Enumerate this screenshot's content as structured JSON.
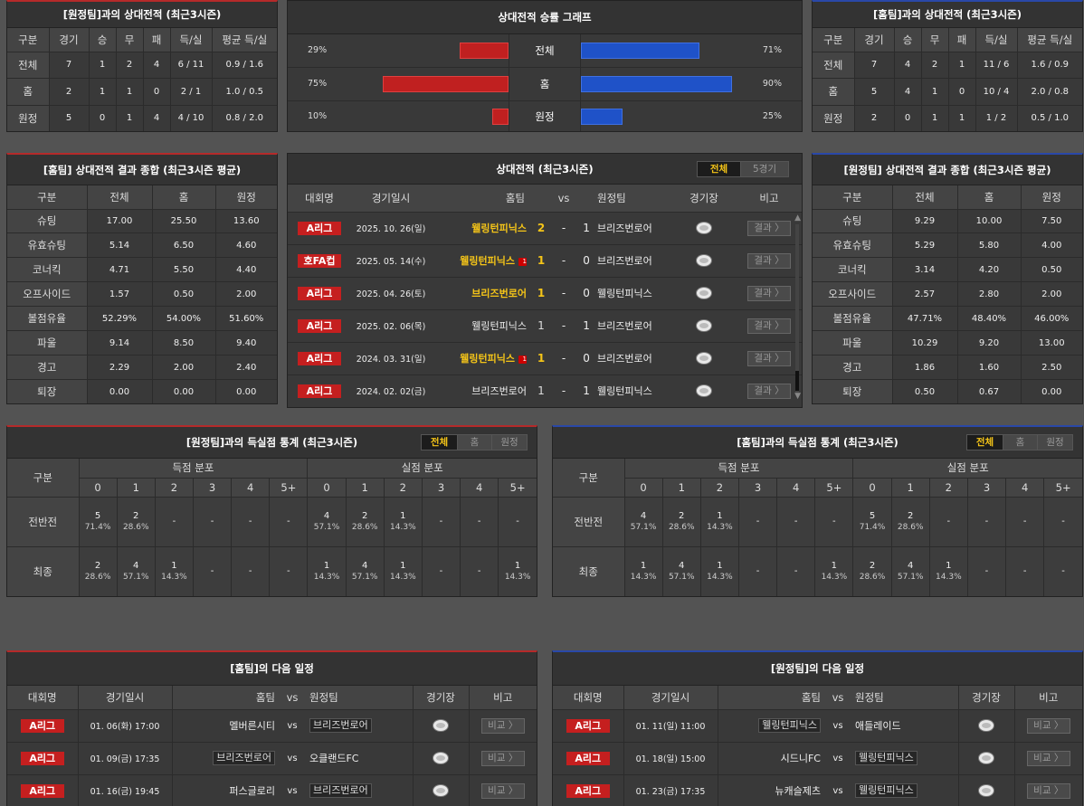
{
  "away_h2h": {
    "title": "[원정팀]과의 상대전적 (최근3시즌)",
    "headers": [
      "구분",
      "경기",
      "승",
      "무",
      "패",
      "득/실",
      "평균 득/실"
    ],
    "rows": [
      [
        "전체",
        "7",
        "1",
        "2",
        "4",
        "6 / 11",
        "0.9 / 1.6"
      ],
      [
        "홈",
        "2",
        "1",
        "1",
        "0",
        "2 / 1",
        "1.0 / 0.5"
      ],
      [
        "원정",
        "5",
        "0",
        "1",
        "4",
        "4 / 10",
        "0.8 / 2.0"
      ]
    ]
  },
  "graph": {
    "title": "상대전적 승률 그래프",
    "rows": [
      {
        "label": "전체",
        "left_pct": "29%",
        "right_pct": "71%",
        "left": 29,
        "right": 71
      },
      {
        "label": "홈",
        "left_pct": "75%",
        "right_pct": "90%",
        "left": 75,
        "right": 90
      },
      {
        "label": "원정",
        "left_pct": "10%",
        "right_pct": "25%",
        "left": 10,
        "right": 25
      }
    ]
  },
  "home_h2h": {
    "title": "[홈팀]과의 상대전적 (최근3시즌)",
    "headers": [
      "구분",
      "경기",
      "승",
      "무",
      "패",
      "득/실",
      "평균 득/실"
    ],
    "rows": [
      [
        "전체",
        "7",
        "4",
        "2",
        "1",
        "11 / 6",
        "1.6 / 0.9"
      ],
      [
        "홈",
        "5",
        "4",
        "1",
        "0",
        "10 / 4",
        "2.0 / 0.8"
      ],
      [
        "원정",
        "2",
        "0",
        "1",
        "1",
        "1 / 2",
        "0.5 / 1.0"
      ]
    ]
  },
  "home_summary": {
    "title": "[홈팀] 상대전적 결과 종합 (최근3시즌 평균)",
    "headers": [
      "구분",
      "전체",
      "홈",
      "원정"
    ],
    "rows": [
      [
        "슈팅",
        "17.00",
        "25.50",
        "13.60"
      ],
      [
        "유효슈팅",
        "5.14",
        "6.50",
        "4.60"
      ],
      [
        "코너킥",
        "4.71",
        "5.50",
        "4.40"
      ],
      [
        "오프사이드",
        "1.57",
        "0.50",
        "2.00"
      ],
      [
        "볼점유율",
        "52.29%",
        "54.00%",
        "51.60%"
      ],
      [
        "파울",
        "9.14",
        "8.50",
        "9.40"
      ],
      [
        "경고",
        "2.29",
        "2.00",
        "2.40"
      ],
      [
        "퇴장",
        "0.00",
        "0.00",
        "0.00"
      ]
    ]
  },
  "matches": {
    "title": "상대전적 (최근3시즌)",
    "tabs": [
      "전체",
      "5경기"
    ],
    "headers": {
      "league": "대회명",
      "date": "경기일시",
      "home": "홈팀",
      "vs": "vs",
      "away": "원정팀",
      "venue": "경기장",
      "note": "비고"
    },
    "result_label": "결과 〉",
    "rows": [
      {
        "league": "A리그",
        "date": "2025. 10. 26(일)",
        "home": "웰링턴피닉스",
        "score_h": "2",
        "dash": "-",
        "score_a": "1",
        "away": "브리즈번로어",
        "home_hl": true,
        "away_hl": false,
        "alert": ""
      },
      {
        "league": "호FA컵",
        "date": "2025. 05. 14(수)",
        "home": "웰링턴피닉스",
        "score_h": "1",
        "dash": "-",
        "score_a": "0",
        "away": "브리즈번로어",
        "home_hl": true,
        "away_hl": false,
        "alert": "1"
      },
      {
        "league": "A리그",
        "date": "2025. 04. 26(토)",
        "home": "브리즈번로어",
        "score_h": "1",
        "dash": "-",
        "score_a": "0",
        "away": "웰링턴피닉스",
        "home_hl": true,
        "away_hl": false,
        "alert": ""
      },
      {
        "league": "A리그",
        "date": "2025. 02. 06(목)",
        "home": "웰링턴피닉스",
        "score_h": "1",
        "dash": "-",
        "score_a": "1",
        "away": "브리즈번로어",
        "home_hl": false,
        "away_hl": false,
        "alert": ""
      },
      {
        "league": "A리그",
        "date": "2024. 03. 31(일)",
        "home": "웰링턴피닉스",
        "score_h": "1",
        "dash": "-",
        "score_a": "0",
        "away": "브리즈번로어",
        "home_hl": true,
        "away_hl": false,
        "alert": "1"
      },
      {
        "league": "A리그",
        "date": "2024. 02. 02(금)",
        "home": "브리즈번로어",
        "score_h": "1",
        "dash": "-",
        "score_a": "1",
        "away": "웰링턴피닉스",
        "home_hl": false,
        "away_hl": false,
        "alert": ""
      }
    ]
  },
  "away_summary": {
    "title": "[원정팀] 상대전적 결과 종합 (최근3시즌 평균)",
    "headers": [
      "구분",
      "전체",
      "홈",
      "원정"
    ],
    "rows": [
      [
        "슈팅",
        "9.29",
        "10.00",
        "7.50"
      ],
      [
        "유효슈팅",
        "5.29",
        "5.80",
        "4.00"
      ],
      [
        "코너킥",
        "3.14",
        "4.20",
        "0.50"
      ],
      [
        "오프사이드",
        "2.57",
        "2.80",
        "2.00"
      ],
      [
        "볼점유율",
        "47.71%",
        "48.40%",
        "46.00%"
      ],
      [
        "파울",
        "10.29",
        "9.20",
        "13.00"
      ],
      [
        "경고",
        "1.86",
        "1.60",
        "2.50"
      ],
      [
        "퇴장",
        "0.50",
        "0.67",
        "0.00"
      ]
    ]
  },
  "goals_left": {
    "title": "[원정팀]과의 득실점 통계 (최근3시즌)",
    "tabs": [
      "전체",
      "홈",
      "원정"
    ],
    "label": "구분",
    "score_label": "득점 분포",
    "concede_label": "실점 분포",
    "cols": [
      "0",
      "1",
      "2",
      "3",
      "4",
      "5+"
    ],
    "rows": [
      {
        "label": "전반전",
        "score": [
          [
            "5",
            "71.4%"
          ],
          [
            "2",
            "28.6%"
          ],
          [
            "-",
            ""
          ],
          [
            "-",
            ""
          ],
          [
            "-",
            ""
          ],
          [
            "-",
            ""
          ]
        ],
        "concede": [
          [
            "4",
            "57.1%"
          ],
          [
            "2",
            "28.6%"
          ],
          [
            "1",
            "14.3%"
          ],
          [
            "-",
            ""
          ],
          [
            "-",
            ""
          ],
          [
            "-",
            ""
          ]
        ]
      },
      {
        "label": "최종",
        "score": [
          [
            "2",
            "28.6%"
          ],
          [
            "4",
            "57.1%"
          ],
          [
            "1",
            "14.3%"
          ],
          [
            "-",
            ""
          ],
          [
            "-",
            ""
          ],
          [
            "-",
            ""
          ]
        ],
        "concede": [
          [
            "1",
            "14.3%"
          ],
          [
            "4",
            "57.1%"
          ],
          [
            "1",
            "14.3%"
          ],
          [
            "-",
            ""
          ],
          [
            "-",
            ""
          ],
          [
            "1",
            "14.3%"
          ]
        ]
      }
    ]
  },
  "goals_right": {
    "title": "[홈팀]과의 득실점 통계 (최근3시즌)",
    "tabs": [
      "전체",
      "홈",
      "원정"
    ],
    "label": "구분",
    "score_label": "득점 분포",
    "concede_label": "실점 분포",
    "cols": [
      "0",
      "1",
      "2",
      "3",
      "4",
      "5+"
    ],
    "rows": [
      {
        "label": "전반전",
        "score": [
          [
            "4",
            "57.1%"
          ],
          [
            "2",
            "28.6%"
          ],
          [
            "1",
            "14.3%"
          ],
          [
            "-",
            ""
          ],
          [
            "-",
            ""
          ],
          [
            "-",
            ""
          ]
        ],
        "concede": [
          [
            "5",
            "71.4%"
          ],
          [
            "2",
            "28.6%"
          ],
          [
            "-",
            ""
          ],
          [
            "-",
            ""
          ],
          [
            "-",
            ""
          ],
          [
            "-",
            ""
          ]
        ]
      },
      {
        "label": "최종",
        "score": [
          [
            "1",
            "14.3%"
          ],
          [
            "4",
            "57.1%"
          ],
          [
            "1",
            "14.3%"
          ],
          [
            "-",
            ""
          ],
          [
            "-",
            ""
          ],
          [
            "1",
            "14.3%"
          ]
        ],
        "concede": [
          [
            "2",
            "28.6%"
          ],
          [
            "4",
            "57.1%"
          ],
          [
            "1",
            "14.3%"
          ],
          [
            "-",
            ""
          ],
          [
            "-",
            ""
          ],
          [
            "-",
            ""
          ]
        ]
      }
    ]
  },
  "home_next": {
    "title": "[홈팀]의 다음 일정",
    "headers": {
      "league": "대회명",
      "date": "경기일시",
      "home": "홈팀",
      "vs": "vs",
      "away": "원정팀",
      "venue": "경기장",
      "note": "비고"
    },
    "compare_label": "비교 〉",
    "rows": [
      {
        "league": "A리그",
        "date": "01. 06(화) 17:00",
        "home": "멜버른시티",
        "vs": "vs",
        "away": "브리즈번로어",
        "boxed": "away"
      },
      {
        "league": "A리그",
        "date": "01. 09(금) 17:35",
        "home": "브리즈번로어",
        "vs": "vs",
        "away": "오클랜드FC",
        "boxed": "home"
      },
      {
        "league": "A리그",
        "date": "01. 16(금) 19:45",
        "home": "퍼스글로리",
        "vs": "vs",
        "away": "브리즈번로어",
        "boxed": "away"
      }
    ]
  },
  "away_next": {
    "title": "[원정팀]의 다음 일정",
    "headers": {
      "league": "대회명",
      "date": "경기일시",
      "home": "홈팀",
      "vs": "vs",
      "away": "원정팀",
      "venue": "경기장",
      "note": "비고"
    },
    "compare_label": "비교 〉",
    "rows": [
      {
        "league": "A리그",
        "date": "01. 11(일) 11:00",
        "home": "웰링턴피닉스",
        "vs": "vs",
        "away": "애들레이드",
        "boxed": "home"
      },
      {
        "league": "A리그",
        "date": "01. 18(일) 15:00",
        "home": "시드니FC",
        "vs": "vs",
        "away": "웰링턴피닉스",
        "boxed": "away"
      },
      {
        "league": "A리그",
        "date": "01. 23(금) 17:35",
        "home": "뉴캐슬제츠",
        "vs": "vs",
        "away": "웰링턴피닉스",
        "boxed": "away"
      }
    ]
  },
  "colors": {
    "accent_red": "#c51f1f",
    "accent_blue": "#1f52c8",
    "highlight": "#f5c518"
  }
}
